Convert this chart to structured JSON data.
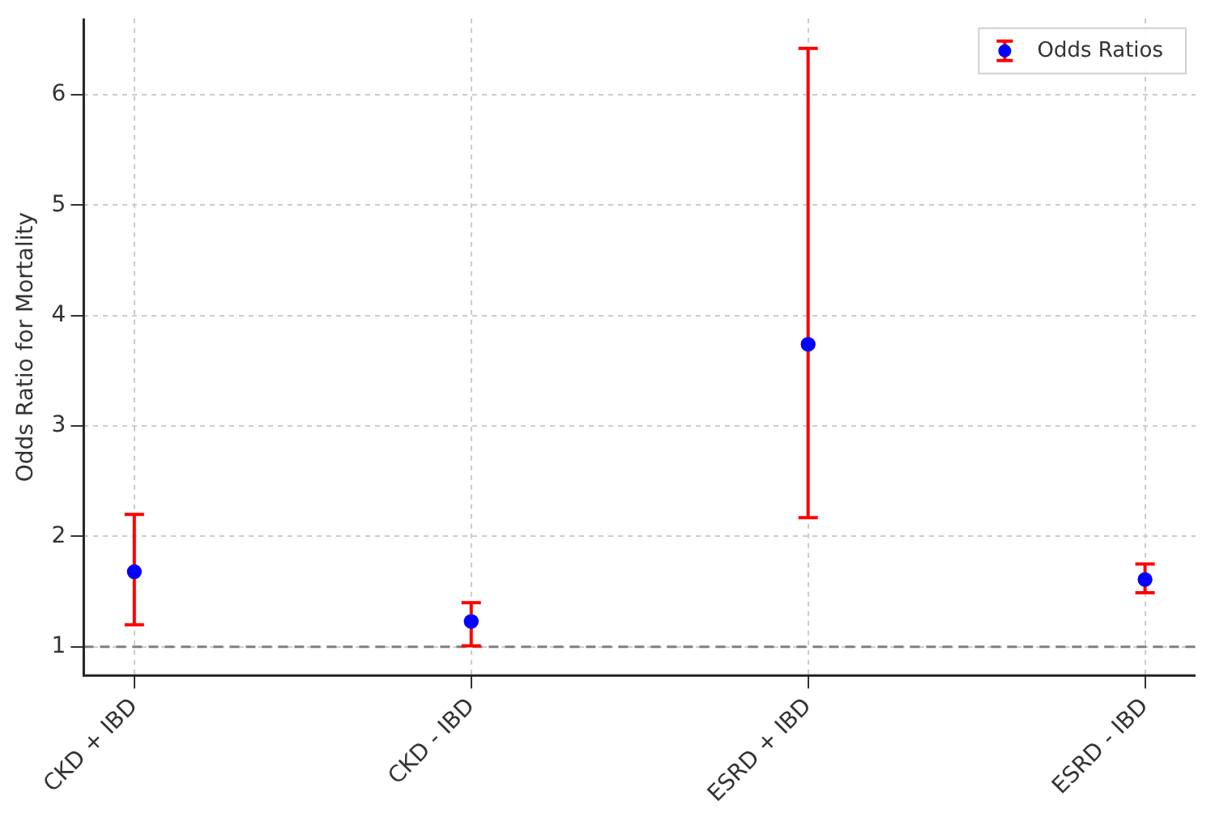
{
  "chart_data": {
    "type": "scatter",
    "ylabel": "Odds Ratio for Mortality",
    "categories": [
      "CKD + IBD",
      "CKD - IBD",
      "ESRD + IBD",
      "ESRD - IBD"
    ],
    "series": [
      {
        "name": "Odds Ratios",
        "color": "#0000ff",
        "values": [
          1.68,
          1.23,
          3.74,
          1.61
        ],
        "errors": [
          [
            1.2,
            2.2
          ],
          [
            1.01,
            1.4
          ],
          [
            2.17,
            6.42
          ],
          [
            1.49,
            1.75
          ]
        ]
      }
    ],
    "ylim": [
      0.74,
      6.69
    ],
    "yticks": [
      1,
      2,
      3,
      4,
      5,
      6
    ],
    "ref_lines": [
      {
        "axis": "y",
        "value": 1,
        "color": "#808080",
        "line_style": "dashed"
      }
    ],
    "grid": true,
    "legend": "top right",
    "marker": "circle"
  }
}
